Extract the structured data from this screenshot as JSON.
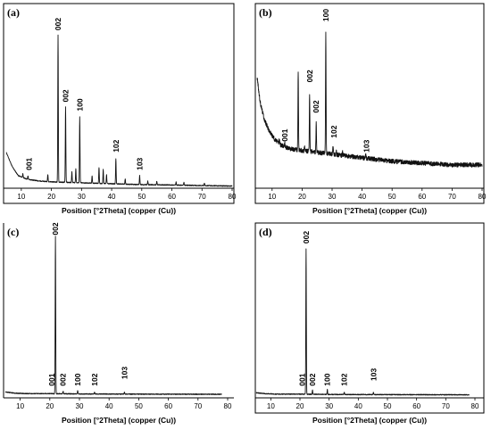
{
  "chart_data": [
    {
      "type": "line",
      "panel_label": "(a)",
      "xlabel": "Position [°2Theta] (copper (Cu))",
      "xlim": [
        0,
        80
      ],
      "xticks": [
        "10",
        "20",
        "30",
        "40",
        "50",
        "60",
        "70",
        "80"
      ],
      "ylim": [
        0,
        100
      ],
      "show_frame": true,
      "baseline": [
        [
          5,
          20
        ],
        [
          7,
          12
        ],
        [
          9,
          7
        ],
        [
          12,
          5
        ],
        [
          16,
          4
        ],
        [
          21,
          3.5
        ],
        [
          30,
          3
        ],
        [
          40,
          2.5
        ],
        [
          50,
          2
        ],
        [
          60,
          1.8
        ],
        [
          70,
          1.5
        ],
        [
          80,
          1.2
        ]
      ],
      "peaks": [
        {
          "x": 10.5,
          "h": 2
        },
        {
          "x": 12.2,
          "h": 2
        },
        {
          "x": 18.8,
          "h": 4
        },
        {
          "x": 22.2,
          "h": 82
        },
        {
          "x": 24.7,
          "h": 42
        },
        {
          "x": 26.8,
          "h": 6
        },
        {
          "x": 28.1,
          "h": 8
        },
        {
          "x": 29.4,
          "h": 37
        },
        {
          "x": 33.5,
          "h": 4
        },
        {
          "x": 35.8,
          "h": 9
        },
        {
          "x": 37.2,
          "h": 8
        },
        {
          "x": 38.3,
          "h": 5
        },
        {
          "x": 41.4,
          "h": 14
        },
        {
          "x": 44.5,
          "h": 3
        },
        {
          "x": 49.3,
          "h": 5
        },
        {
          "x": 52,
          "h": 2
        },
        {
          "x": 55,
          "h": 2
        },
        {
          "x": 61.4,
          "h": 2
        },
        {
          "x": 64,
          "h": 1.5
        },
        {
          "x": 70.8,
          "h": 1.5
        }
      ],
      "annotations": [
        {
          "text": "001",
          "x": 12.5,
          "y": 10
        },
        {
          "text": "002",
          "x": 22.2,
          "y": 88
        },
        {
          "text": "002",
          "x": 24.7,
          "y": 48
        },
        {
          "text": "100",
          "x": 29.4,
          "y": 43
        },
        {
          "text": "102",
          "x": 41.4,
          "y": 20
        },
        {
          "text": "103",
          "x": 49.3,
          "y": 10
        }
      ]
    },
    {
      "type": "line",
      "panel_label": "(b)",
      "xlabel": "Position [°2Theta] (copper (Cu))",
      "xlim": [
        0,
        80
      ],
      "xticks": [
        "10",
        "20",
        "30",
        "40",
        "50",
        "60",
        "70",
        "80"
      ],
      "ylim": [
        0,
        100
      ],
      "show_frame": true,
      "baseline": [
        [
          5,
          62
        ],
        [
          6,
          48
        ],
        [
          7.5,
          38
        ],
        [
          9,
          32
        ],
        [
          11,
          27
        ],
        [
          13,
          24
        ],
        [
          16,
          22
        ],
        [
          20,
          21
        ],
        [
          25,
          20
        ],
        [
          30,
          19
        ],
        [
          40,
          17
        ],
        [
          50,
          15
        ],
        [
          60,
          14
        ],
        [
          70,
          13
        ],
        [
          80,
          13
        ]
      ],
      "noise": 2.5,
      "peaks": [
        {
          "x": 12.4,
          "h": 3
        },
        {
          "x": 14.2,
          "h": 3
        },
        {
          "x": 18.7,
          "h": 44
        },
        {
          "x": 20.8,
          "h": 3
        },
        {
          "x": 22.5,
          "h": 32
        },
        {
          "x": 24.7,
          "h": 16
        },
        {
          "x": 27.9,
          "h": 67
        },
        {
          "x": 30.3,
          "h": 4
        },
        {
          "x": 31.4,
          "h": 3
        },
        {
          "x": 33.5,
          "h": 2
        },
        {
          "x": 41.2,
          "h": 2
        }
      ],
      "annotations": [
        {
          "text": "001",
          "x": 14.2,
          "y": 26
        },
        {
          "text": "002",
          "x": 22.5,
          "y": 59
        },
        {
          "text": "002",
          "x": 24.7,
          "y": 42
        },
        {
          "text": "100",
          "x": 27.9,
          "y": 93
        },
        {
          "text": "102",
          "x": 30.6,
          "y": 28
        },
        {
          "text": "103",
          "x": 41.5,
          "y": 20
        }
      ]
    },
    {
      "type": "line",
      "panel_label": "(c)",
      "xlabel": "Position [°2Theta] (copper (Cu))",
      "xlim": [
        0,
        80
      ],
      "xticks": [
        "10",
        "20",
        "30",
        "40",
        "50",
        "60",
        "70",
        "80"
      ],
      "ylim": [
        0,
        100
      ],
      "show_frame": false,
      "line_end": 78,
      "baseline": [
        [
          5,
          3.5
        ],
        [
          8,
          2.8
        ],
        [
          12,
          2.5
        ],
        [
          20,
          2.5
        ],
        [
          30,
          2.3
        ],
        [
          50,
          2.2
        ],
        [
          80,
          2.1
        ]
      ],
      "peaks": [
        {
          "x": 21.9,
          "h": 93
        },
        {
          "x": 24.5,
          "h": 1.5
        },
        {
          "x": 29.4,
          "h": 2
        },
        {
          "x": 35.1,
          "h": 1
        },
        {
          "x": 45.2,
          "h": 1.3
        }
      ],
      "annotations": [
        {
          "text": "001",
          "x": 20.6,
          "y": 7
        },
        {
          "text": "002",
          "x": 21.9,
          "y": 96
        },
        {
          "text": "002",
          "x": 24.5,
          "y": 7
        },
        {
          "text": "100",
          "x": 29.4,
          "y": 7
        },
        {
          "text": "102",
          "x": 35.1,
          "y": 7
        },
        {
          "text": "103",
          "x": 45.2,
          "y": 11
        }
      ]
    },
    {
      "type": "line",
      "panel_label": "(d)",
      "xlabel": "Position [°2Theta] (copper (Cu))",
      "xlim": [
        0,
        80
      ],
      "xticks": [
        "10",
        "20",
        "30",
        "40",
        "50",
        "60",
        "70",
        "80"
      ],
      "ylim": [
        0,
        100
      ],
      "show_frame": true,
      "line_end": 78,
      "baseline": [
        [
          5,
          3
        ],
        [
          8,
          2.5
        ],
        [
          12,
          2.2
        ],
        [
          20,
          2.2
        ],
        [
          30,
          2
        ],
        [
          50,
          1.9
        ],
        [
          80,
          1.8
        ]
      ],
      "peaks": [
        {
          "x": 22.1,
          "h": 86
        },
        {
          "x": 24.3,
          "h": 2.5
        },
        {
          "x": 29.4,
          "h": 3
        },
        {
          "x": 35.2,
          "h": 1.5
        },
        {
          "x": 45.2,
          "h": 1.3
        }
      ],
      "annotations": [
        {
          "text": "001",
          "x": 20.7,
          "y": 7
        },
        {
          "text": "002",
          "x": 22.1,
          "y": 91
        },
        {
          "text": "002",
          "x": 24.3,
          "y": 7
        },
        {
          "text": "100",
          "x": 29.4,
          "y": 7
        },
        {
          "text": "102",
          "x": 35.2,
          "y": 7
        },
        {
          "text": "103",
          "x": 45.2,
          "y": 10
        }
      ]
    }
  ]
}
